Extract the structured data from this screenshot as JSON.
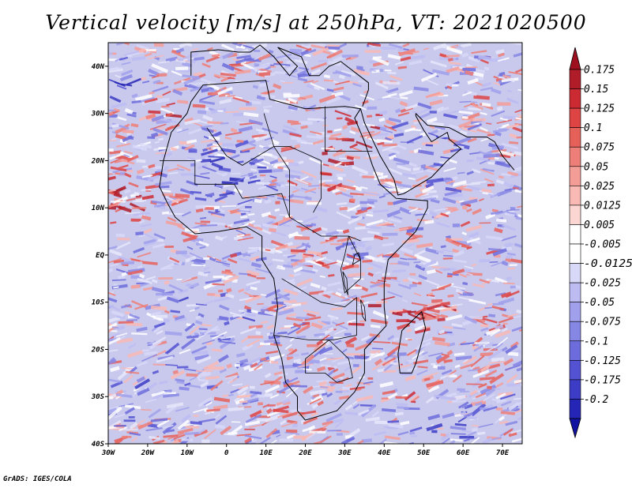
{
  "title": "Vertical velocity [m/s] at 250hPa, VT: 2021020500",
  "credit": "GrADS: IGES/COLA",
  "map": {
    "lon_range": [
      -30,
      75
    ],
    "lat_range": [
      -40,
      45
    ],
    "lon_ticks": [
      {
        "value": -30,
        "label": "30W"
      },
      {
        "value": -20,
        "label": "20W"
      },
      {
        "value": -10,
        "label": "10W"
      },
      {
        "value": 0,
        "label": "0"
      },
      {
        "value": 10,
        "label": "10E"
      },
      {
        "value": 20,
        "label": "20E"
      },
      {
        "value": 30,
        "label": "30E"
      },
      {
        "value": 40,
        "label": "40E"
      },
      {
        "value": 50,
        "label": "50E"
      },
      {
        "value": 60,
        "label": "60E"
      },
      {
        "value": 70,
        "label": "70E"
      }
    ],
    "lat_ticks": [
      {
        "value": 40,
        "label": "40N"
      },
      {
        "value": 30,
        "label": "30N"
      },
      {
        "value": 20,
        "label": "20N"
      },
      {
        "value": 10,
        "label": "10N"
      },
      {
        "value": 0,
        "label": "EQ"
      },
      {
        "value": -10,
        "label": "10S"
      },
      {
        "value": -20,
        "label": "20S"
      },
      {
        "value": -30,
        "label": "30S"
      },
      {
        "value": -40,
        "label": "40S"
      }
    ]
  },
  "colorbar": {
    "bins": [
      {
        "color": "#b01c28"
      },
      {
        "color": "#cc2a32"
      },
      {
        "color": "#dd4443"
      },
      {
        "color": "#e6605a"
      },
      {
        "color": "#ee7f78"
      },
      {
        "color": "#f49c96"
      },
      {
        "color": "#f9b9b4"
      },
      {
        "color": "#fcd6d3"
      },
      {
        "color": "#ffffff"
      },
      {
        "color": "#ffffff"
      },
      {
        "color": "#d8d8f8"
      },
      {
        "color": "#bcbcf2"
      },
      {
        "color": "#a0a0ec"
      },
      {
        "color": "#8686e4"
      },
      {
        "color": "#6c6cdc"
      },
      {
        "color": "#5252d2"
      },
      {
        "color": "#3c3cc6"
      },
      {
        "color": "#2626b6"
      }
    ],
    "top_arrow_color": "#9e1020",
    "bottom_arrow_color": "#1212a0",
    "labels": [
      "0.175",
      "0.15",
      "0.125",
      "0.1",
      "0.075",
      "0.05",
      "0.025",
      "0.0125",
      "0.005",
      "-0.005",
      "-0.0125",
      "-0.025",
      "-0.05",
      "-0.075",
      "-0.1",
      "-0.125",
      "-0.175",
      "-0.2"
    ]
  }
}
